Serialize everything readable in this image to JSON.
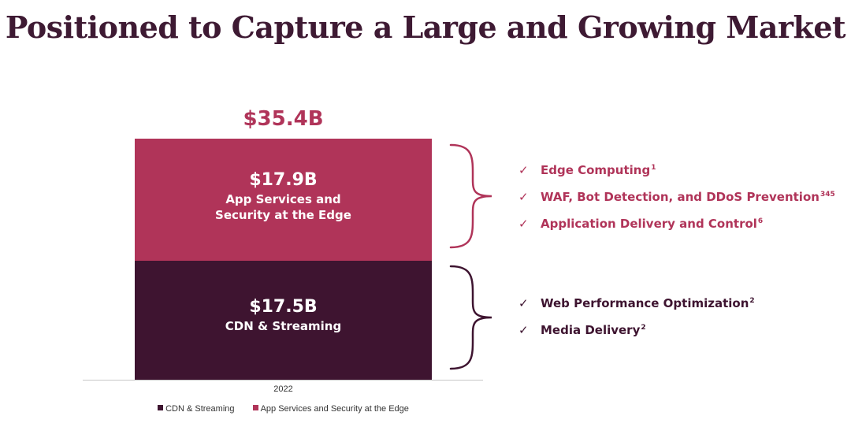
{
  "title": "Positioned to Capture a Large and Growing Market",
  "colors": {
    "title": "#3e1a33",
    "cdn": "#3e1430",
    "app": "#b03459",
    "brace_app": "#b03459",
    "brace_cdn": "#3e1430"
  },
  "chart_data": {
    "type": "bar",
    "stacked": true,
    "categories": [
      "2022"
    ],
    "total_label": "$35.4B",
    "series": [
      {
        "name": "CDN & Streaming",
        "values": [
          17.5
        ],
        "value_label": "$17.5B",
        "label": "CDN & Streaming",
        "color": "#3e1430"
      },
      {
        "name": "App Services and Security at the Edge",
        "values": [
          17.9
        ],
        "value_label": "$17.9B",
        "label": "App Services and Security at the Edge",
        "label_lines": [
          "App Services and",
          "Security at the Edge"
        ],
        "color": "#b03459"
      }
    ],
    "ylim": [
      0,
      35.4
    ],
    "legend": "bottom",
    "grid": false
  },
  "features": {
    "app": [
      {
        "text": "Edge Computing",
        "sup": "1"
      },
      {
        "text": "WAF, Bot Detection, and DDoS Prevention",
        "sup": "345"
      },
      {
        "text": "Application Delivery and Control",
        "sup": "6"
      }
    ],
    "cdn": [
      {
        "text": "Web Performance Optimization",
        "sup": "2"
      },
      {
        "text": "Media Delivery",
        "sup": "2"
      }
    ],
    "check_glyph": "✓"
  }
}
